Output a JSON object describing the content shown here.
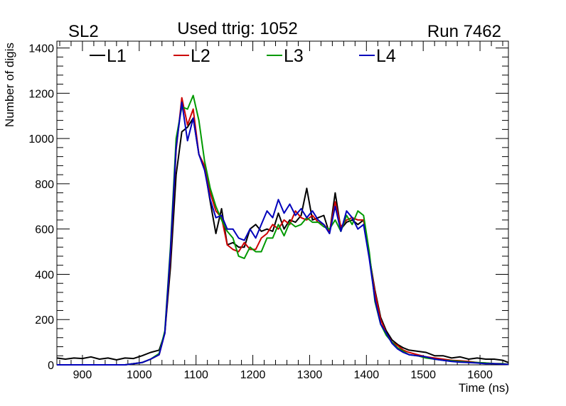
{
  "header": {
    "left": "SL2",
    "center": "Used ttrig: 1052",
    "right": "Run 7462"
  },
  "chart_data": {
    "type": "line",
    "xlabel": "Time (ns)",
    "ylabel": "Number of digis",
    "xlim": [
      855,
      1650
    ],
    "ylim": [
      0,
      1430
    ],
    "x_ticks": [
      900,
      1000,
      1100,
      1200,
      1300,
      1400,
      1500,
      1600
    ],
    "y_ticks": [
      0,
      200,
      400,
      600,
      800,
      1000,
      1200,
      1400
    ],
    "grid": false,
    "legend_position": "top",
    "series": [
      {
        "name": "L1",
        "color": "#000000",
        "x": [
          855,
          870,
          885,
          900,
          915,
          930,
          945,
          960,
          975,
          990,
          1005,
          1020,
          1035,
          1045,
          1055,
          1065,
          1075,
          1085,
          1095,
          1105,
          1115,
          1125,
          1135,
          1145,
          1155,
          1165,
          1175,
          1185,
          1195,
          1205,
          1215,
          1225,
          1235,
          1245,
          1255,
          1265,
          1275,
          1285,
          1295,
          1305,
          1315,
          1325,
          1335,
          1345,
          1355,
          1365,
          1375,
          1385,
          1395,
          1405,
          1415,
          1425,
          1435,
          1445,
          1455,
          1465,
          1475,
          1490,
          1505,
          1520,
          1535,
          1550,
          1565,
          1580,
          1595,
          1610,
          1625,
          1640,
          1650
        ],
        "values": [
          30,
          25,
          30,
          28,
          35,
          25,
          30,
          22,
          30,
          28,
          40,
          55,
          65,
          140,
          430,
          840,
          1030,
          1050,
          1090,
          930,
          870,
          720,
          580,
          690,
          530,
          540,
          520,
          520,
          600,
          620,
          590,
          600,
          590,
          670,
          600,
          640,
          630,
          660,
          780,
          640,
          650,
          660,
          580,
          760,
          600,
          630,
          640,
          620,
          640,
          480,
          330,
          210,
          150,
          110,
          90,
          75,
          65,
          60,
          55,
          40,
          40,
          30,
          35,
          25,
          30,
          25,
          25,
          20,
          10
        ]
      },
      {
        "name": "L2",
        "color": "#cc0000",
        "x": [
          855,
          870,
          885,
          900,
          915,
          930,
          945,
          960,
          975,
          990,
          1005,
          1020,
          1035,
          1045,
          1055,
          1065,
          1075,
          1085,
          1095,
          1105,
          1115,
          1125,
          1135,
          1145,
          1155,
          1165,
          1175,
          1185,
          1195,
          1205,
          1215,
          1225,
          1235,
          1245,
          1255,
          1265,
          1275,
          1285,
          1295,
          1305,
          1315,
          1325,
          1335,
          1345,
          1355,
          1365,
          1375,
          1385,
          1395,
          1405,
          1415,
          1425,
          1435,
          1445,
          1455,
          1465,
          1475,
          1490,
          1505,
          1520,
          1535,
          1550,
          1565,
          1580,
          1595,
          1610,
          1625,
          1640,
          1650
        ],
        "values": [
          0,
          0,
          0,
          0,
          0,
          0,
          0,
          0,
          0,
          5,
          10,
          25,
          45,
          140,
          480,
          950,
          1180,
          1060,
          1130,
          930,
          880,
          760,
          680,
          650,
          530,
          510,
          500,
          540,
          510,
          510,
          560,
          580,
          620,
          600,
          640,
          620,
          680,
          650,
          640,
          660,
          630,
          620,
          590,
          720,
          610,
          640,
          650,
          640,
          640,
          480,
          320,
          200,
          140,
          100,
          85,
          65,
          55,
          45,
          35,
          30,
          25,
          20,
          18,
          15,
          10,
          8,
          5,
          5,
          2
        ]
      },
      {
        "name": "L3",
        "color": "#009900",
        "x": [
          855,
          870,
          885,
          900,
          915,
          930,
          945,
          960,
          975,
          990,
          1005,
          1020,
          1035,
          1045,
          1055,
          1065,
          1075,
          1085,
          1095,
          1105,
          1115,
          1125,
          1135,
          1145,
          1155,
          1165,
          1175,
          1185,
          1195,
          1205,
          1215,
          1225,
          1235,
          1245,
          1255,
          1265,
          1275,
          1285,
          1295,
          1305,
          1315,
          1325,
          1335,
          1345,
          1355,
          1365,
          1375,
          1385,
          1395,
          1405,
          1415,
          1425,
          1435,
          1445,
          1455,
          1465,
          1475,
          1490,
          1505,
          1520,
          1535,
          1550,
          1565,
          1580,
          1595,
          1610,
          1625,
          1640,
          1650
        ],
        "values": [
          0,
          0,
          0,
          0,
          0,
          0,
          0,
          0,
          0,
          5,
          10,
          25,
          50,
          150,
          520,
          1000,
          1140,
          1130,
          1190,
          1080,
          900,
          780,
          700,
          640,
          590,
          560,
          480,
          470,
          520,
          500,
          500,
          560,
          560,
          620,
          570,
          630,
          610,
          620,
          650,
          630,
          630,
          610,
          600,
          640,
          590,
          660,
          620,
          680,
          660,
          500,
          280,
          180,
          130,
          100,
          75,
          60,
          45,
          40,
          30,
          25,
          20,
          18,
          15,
          12,
          10,
          8,
          5,
          5,
          2
        ]
      },
      {
        "name": "L4",
        "color": "#0000bb",
        "x": [
          855,
          870,
          885,
          900,
          915,
          930,
          945,
          960,
          975,
          990,
          1005,
          1020,
          1035,
          1045,
          1055,
          1065,
          1075,
          1085,
          1095,
          1105,
          1115,
          1125,
          1135,
          1145,
          1155,
          1165,
          1175,
          1185,
          1195,
          1205,
          1215,
          1225,
          1235,
          1245,
          1255,
          1265,
          1275,
          1285,
          1295,
          1305,
          1315,
          1325,
          1335,
          1345,
          1355,
          1365,
          1375,
          1385,
          1395,
          1405,
          1415,
          1425,
          1435,
          1445,
          1455,
          1465,
          1475,
          1490,
          1505,
          1520,
          1535,
          1550,
          1565,
          1580,
          1595,
          1610,
          1625,
          1640,
          1650
        ],
        "values": [
          0,
          0,
          0,
          0,
          0,
          0,
          0,
          0,
          0,
          5,
          10,
          25,
          45,
          140,
          500,
          960,
          1160,
          990,
          1090,
          930,
          860,
          730,
          650,
          660,
          600,
          600,
          560,
          550,
          600,
          560,
          620,
          680,
          650,
          730,
          670,
          710,
          660,
          690,
          650,
          680,
          640,
          620,
          580,
          700,
          590,
          680,
          650,
          600,
          620,
          470,
          290,
          180,
          140,
          95,
          70,
          55,
          45,
          40,
          35,
          25,
          20,
          15,
          12,
          10,
          8,
          5,
          5,
          3,
          2
        ]
      }
    ]
  }
}
